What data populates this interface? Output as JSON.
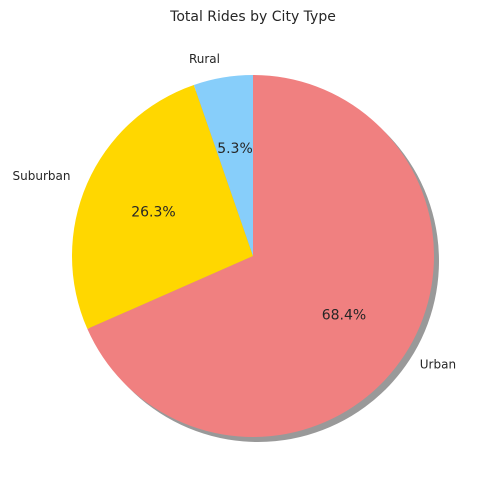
{
  "chart_data": {
    "type": "pie",
    "title": "Total Rides by City Type",
    "start_angle_deg": 90,
    "direction": "clockwise",
    "shadow": true,
    "slices": [
      {
        "label": "Urban",
        "percent_text": "68.4%",
        "value": 68.4,
        "color": "#F08080"
      },
      {
        "label": "Suburban",
        "percent_text": "26.3%",
        "value": 26.3,
        "color": "#FFD700"
      },
      {
        "label": "Rural",
        "percent_text": "5.3%",
        "value": 5.3,
        "color": "#87CEFA"
      }
    ]
  }
}
